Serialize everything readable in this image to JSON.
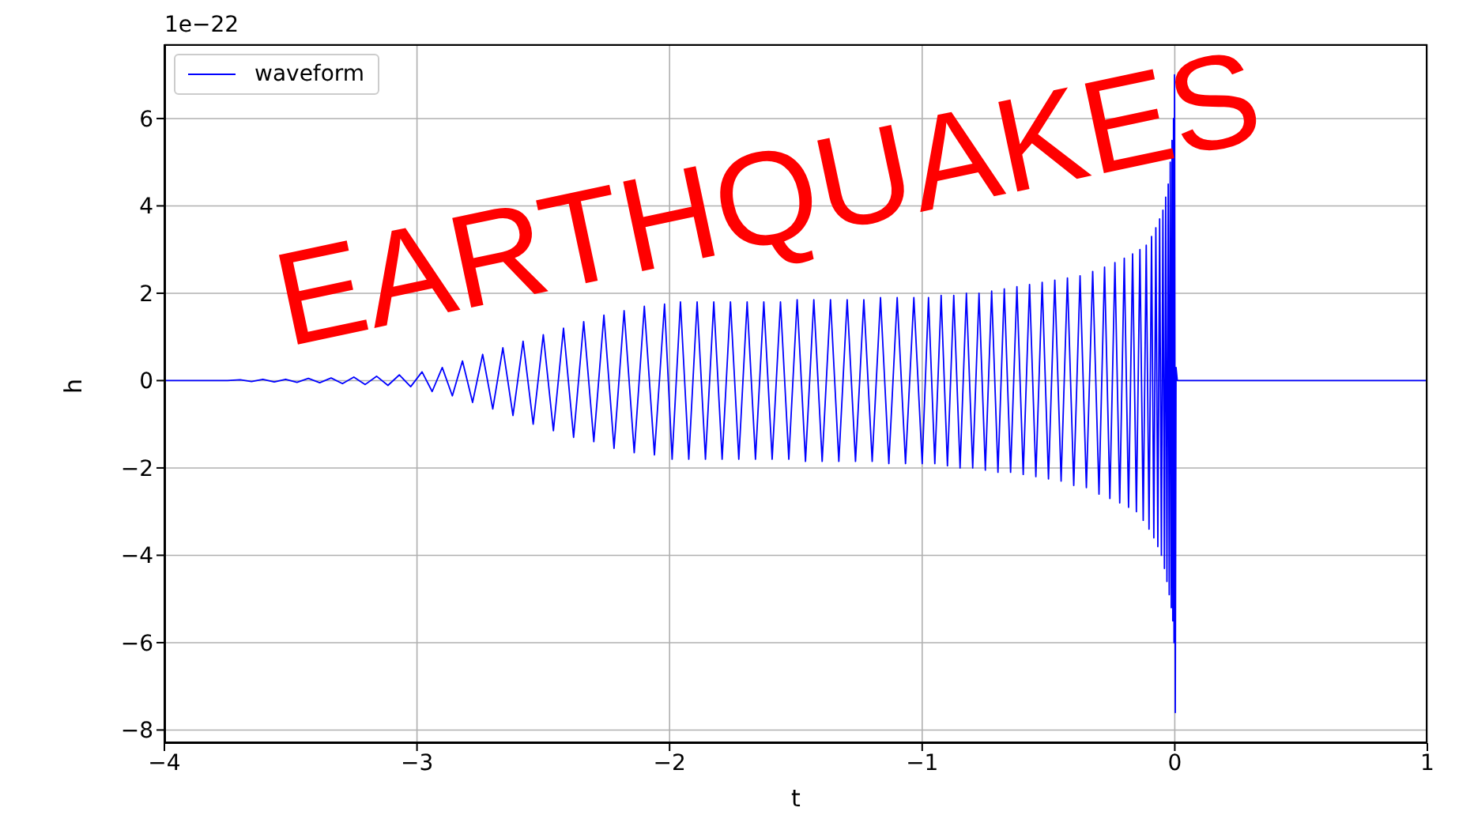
{
  "chart_data": {
    "type": "line",
    "xlabel": "t",
    "ylabel": "h",
    "annotations": [
      "1e−22",
      "EARTHQUAKES"
    ],
    "xlim": [
      -4,
      1
    ],
    "xticks": [
      -4,
      -3,
      -2,
      -1,
      0,
      1
    ],
    "ylim": [
      -8.3,
      7.7
    ],
    "yticks": [
      -8,
      -6,
      -4,
      -2,
      0,
      2,
      4,
      6
    ],
    "grid": true,
    "legend": "top left",
    "line_style": "solid",
    "marker": "none",
    "x": [
      -4,
      -3.75,
      -3.7,
      -3.655,
      -3.61,
      -3.565,
      -3.52,
      -3.475,
      -3.43,
      -3.385,
      -3.34,
      -3.295,
      -3.25,
      -3.205,
      -3.16,
      -3.115,
      -3.07,
      -3.025,
      -2.98,
      -2.94,
      -2.9,
      -2.86,
      -2.82,
      -2.78,
      -2.74,
      -2.7,
      -2.66,
      -2.62,
      -2.58,
      -2.54,
      -2.5,
      -2.46,
      -2.42,
      -2.38,
      -2.34,
      -2.3,
      -2.26,
      -2.22,
      -2.18,
      -2.14,
      -2.1,
      -2.06,
      -2.02,
      -1.99,
      -1.957,
      -1.924,
      -1.891,
      -1.858,
      -1.825,
      -1.792,
      -1.759,
      -1.726,
      -1.693,
      -1.66,
      -1.627,
      -1.594,
      -1.561,
      -1.528,
      -1.495,
      -1.462,
      -1.429,
      -1.396,
      -1.363,
      -1.33,
      -1.297,
      -1.264,
      -1.231,
      -1.198,
      -1.165,
      -1.132,
      -1.099,
      -1.066,
      -1.033,
      -1.0,
      -0.975,
      -0.95,
      -0.925,
      -0.9,
      -0.875,
      -0.85,
      -0.825,
      -0.8,
      -0.775,
      -0.75,
      -0.725,
      -0.7,
      -0.675,
      -0.65,
      -0.625,
      -0.6,
      -0.575,
      -0.55,
      -0.525,
      -0.5,
      -0.475,
      -0.45,
      -0.425,
      -0.4,
      -0.375,
      -0.35,
      -0.325,
      -0.3,
      -0.278,
      -0.257,
      -0.237,
      -0.218,
      -0.2,
      -0.183,
      -0.167,
      -0.152,
      -0.138,
      -0.125,
      -0.113,
      -0.102,
      -0.092,
      -0.083,
      -0.075,
      -0.067,
      -0.06,
      -0.053,
      -0.047,
      -0.041,
      -0.036,
      -0.031,
      -0.026,
      -0.022,
      -0.018,
      -0.014,
      -0.011,
      -0.008,
      -0.005,
      -0.003,
      -0.001,
      0.002,
      0.005,
      0.01,
      1.0
    ],
    "series": [
      {
        "name": "waveform",
        "color": "#0000ff",
        "values": [
          0,
          0,
          0.02,
          -0.02,
          0.03,
          -0.03,
          0.03,
          -0.04,
          0.05,
          -0.05,
          0.06,
          -0.07,
          0.08,
          -0.09,
          0.1,
          -0.11,
          0.13,
          -0.14,
          0.2,
          -0.25,
          0.3,
          -0.35,
          0.45,
          -0.5,
          0.6,
          -0.65,
          0.75,
          -0.8,
          0.9,
          -1.0,
          1.05,
          -1.15,
          1.2,
          -1.3,
          1.35,
          -1.4,
          1.5,
          -1.55,
          1.6,
          -1.65,
          1.7,
          -1.7,
          1.75,
          -1.8,
          1.8,
          -1.8,
          1.8,
          -1.8,
          1.8,
          -1.8,
          1.8,
          -1.8,
          1.8,
          -1.8,
          1.8,
          -1.8,
          1.8,
          -1.8,
          1.85,
          -1.85,
          1.85,
          -1.85,
          1.85,
          -1.85,
          1.85,
          -1.85,
          1.85,
          -1.85,
          1.9,
          -1.9,
          1.9,
          -1.9,
          1.9,
          -1.9,
          1.9,
          -1.9,
          1.95,
          -1.95,
          1.95,
          -2.0,
          2.0,
          -2.0,
          2.0,
          -2.05,
          2.05,
          -2.1,
          2.1,
          -2.1,
          2.15,
          -2.15,
          2.2,
          -2.2,
          2.25,
          -2.25,
          2.3,
          -2.3,
          2.35,
          -2.4,
          2.4,
          -2.45,
          2.5,
          -2.6,
          2.6,
          -2.7,
          2.7,
          -2.8,
          2.8,
          -2.9,
          2.9,
          -3.0,
          3.0,
          -3.2,
          3.1,
          -3.4,
          3.3,
          -3.6,
          3.5,
          -3.8,
          3.7,
          -4.0,
          3.9,
          -4.3,
          4.2,
          -4.6,
          4.5,
          -4.9,
          5.0,
          -5.2,
          5.5,
          -5.5,
          6.0,
          -6.0,
          7.0,
          -7.6,
          0.3,
          0,
          0
        ]
      }
    ]
  }
}
